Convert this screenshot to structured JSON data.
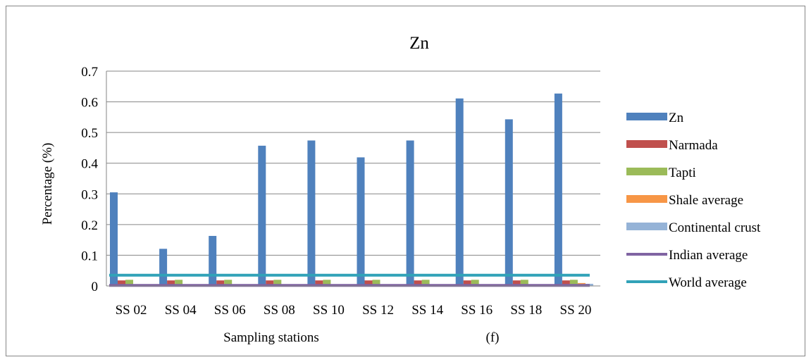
{
  "chart_data": {
    "type": "bar",
    "title": "Zn",
    "xlabel": "Sampling stations",
    "ylabel": "Percentage (%)",
    "annotation": "(f)",
    "categories": [
      "SS 02",
      "SS 04",
      "SS 06",
      "SS 08",
      "SS 10",
      "SS 12",
      "SS 14",
      "SS 16",
      "SS 18",
      "SS 20"
    ],
    "ylim": [
      0,
      0.7
    ],
    "yticks": [
      0,
      0.1,
      0.2,
      0.3,
      0.4,
      0.5,
      0.6,
      0.7
    ],
    "ytick_labels": [
      "0",
      "0.1",
      "0.2",
      "0.3",
      "0.4",
      "0.5",
      "0.6",
      "0.7"
    ],
    "grid": true,
    "legend_position": "right",
    "series": [
      {
        "name": "Zn",
        "kind": "bar",
        "color": "#4F81BD",
        "values": [
          0.305,
          0.121,
          0.163,
          0.457,
          0.474,
          0.419,
          0.474,
          0.611,
          0.543,
          0.627
        ]
      },
      {
        "name": "Narmada",
        "kind": "bar",
        "color": "#C0504D",
        "values": [
          0.018,
          0.018,
          0.018,
          0.018,
          0.018,
          0.018,
          0.018,
          0.018,
          0.018,
          0.018
        ]
      },
      {
        "name": "Tapti",
        "kind": "bar",
        "color": "#9BBB59",
        "values": [
          0.02,
          0.02,
          0.02,
          0.02,
          0.02,
          0.02,
          0.02,
          0.02,
          0.02,
          0.02
        ]
      },
      {
        "name": "Shale average",
        "kind": "bar",
        "color": "#F79646",
        "values": [
          0,
          0,
          0,
          0,
          0,
          0,
          0,
          0,
          0,
          0.0095
        ]
      },
      {
        "name": "Continental crust",
        "kind": "bar",
        "color": "#95B3D7",
        "values": [
          0,
          0,
          0,
          0,
          0,
          0,
          0,
          0,
          0,
          0.007
        ]
      },
      {
        "name": "Indian average",
        "kind": "line",
        "color": "#8064A2",
        "values": [
          0.0016,
          0.0016,
          0.0016,
          0.0016,
          0.0016,
          0.0016,
          0.0016,
          0.0016,
          0.0016,
          0.0016
        ]
      },
      {
        "name": "World average",
        "kind": "line",
        "color": "#31A2B8",
        "values": [
          0.035,
          0.035,
          0.035,
          0.035,
          0.035,
          0.035,
          0.035,
          0.035,
          0.035,
          0.035
        ]
      }
    ]
  }
}
